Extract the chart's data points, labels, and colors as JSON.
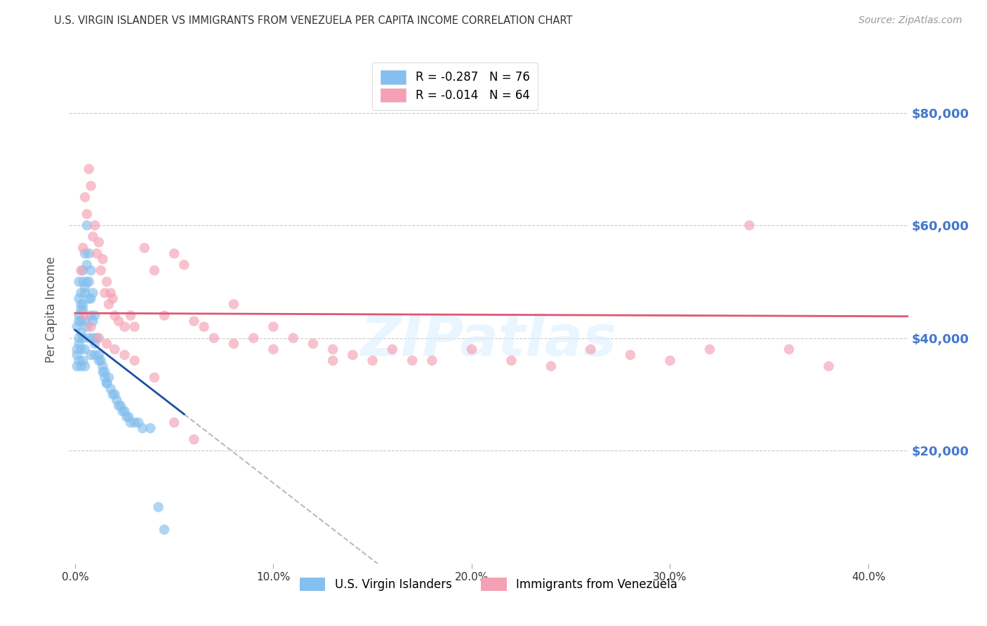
{
  "title": "U.S. VIRGIN ISLANDER VS IMMIGRANTS FROM VENEZUELA PER CAPITA INCOME CORRELATION CHART",
  "source": "Source: ZipAtlas.com",
  "ylabel": "Per Capita Income",
  "xlabel_ticks": [
    "0.0%",
    "10.0%",
    "20.0%",
    "30.0%",
    "40.0%"
  ],
  "xlabel_vals": [
    0.0,
    0.1,
    0.2,
    0.3,
    0.4
  ],
  "ytick_labels": [
    "$20,000",
    "$40,000",
    "$60,000",
    "$80,000"
  ],
  "ytick_vals": [
    20000,
    40000,
    60000,
    80000
  ],
  "ylim": [
    0,
    90000
  ],
  "xlim": [
    -0.003,
    0.42
  ],
  "blue_R": -0.287,
  "blue_N": 76,
  "pink_R": -0.014,
  "pink_N": 64,
  "legend_label_blue": "R = -0.287   N = 76",
  "legend_label_pink": "R = -0.014   N = 64",
  "legend_label_scatter_blue": "U.S. Virgin Islanders",
  "legend_label_scatter_pink": "Immigrants from Venezuela",
  "blue_color": "#85BFED",
  "blue_line_color": "#1A4FA0",
  "pink_color": "#F5A0B5",
  "pink_line_color": "#E05575",
  "watermark": "ZIPatlas",
  "scatter_size": 110,
  "blue_points_x": [
    0.001,
    0.001,
    0.001,
    0.002,
    0.002,
    0.002,
    0.002,
    0.002,
    0.003,
    0.003,
    0.003,
    0.003,
    0.003,
    0.004,
    0.004,
    0.004,
    0.004,
    0.005,
    0.005,
    0.005,
    0.005,
    0.005,
    0.006,
    0.006,
    0.006,
    0.007,
    0.007,
    0.007,
    0.008,
    0.008,
    0.008,
    0.009,
    0.009,
    0.01,
    0.01,
    0.011,
    0.012,
    0.013,
    0.014,
    0.015,
    0.015,
    0.016,
    0.017,
    0.018,
    0.019,
    0.02,
    0.021,
    0.022,
    0.023,
    0.024,
    0.025,
    0.026,
    0.027,
    0.028,
    0.03,
    0.032,
    0.034,
    0.038,
    0.042,
    0.045,
    0.001,
    0.002,
    0.002,
    0.003,
    0.003,
    0.004,
    0.004,
    0.005,
    0.006,
    0.007,
    0.008,
    0.009,
    0.01,
    0.012,
    0.014,
    0.016
  ],
  "blue_points_y": [
    38000,
    42000,
    35000,
    44000,
    47000,
    50000,
    40000,
    36000,
    45000,
    48000,
    43000,
    38000,
    35000,
    52000,
    46000,
    40000,
    36000,
    55000,
    48000,
    43000,
    38000,
    35000,
    60000,
    50000,
    42000,
    55000,
    47000,
    40000,
    52000,
    44000,
    37000,
    48000,
    40000,
    44000,
    37000,
    40000,
    37000,
    36000,
    35000,
    34000,
    33000,
    32000,
    33000,
    31000,
    30000,
    30000,
    29000,
    28000,
    28000,
    27000,
    27000,
    26000,
    26000,
    25000,
    25000,
    25000,
    24000,
    24000,
    10000,
    6000,
    37000,
    43000,
    39000,
    46000,
    41000,
    50000,
    45000,
    49000,
    53000,
    50000,
    47000,
    43000,
    39000,
    36000,
    34000,
    32000
  ],
  "pink_points_x": [
    0.003,
    0.004,
    0.005,
    0.006,
    0.007,
    0.008,
    0.009,
    0.01,
    0.011,
    0.012,
    0.013,
    0.014,
    0.015,
    0.016,
    0.017,
    0.018,
    0.019,
    0.02,
    0.022,
    0.025,
    0.028,
    0.03,
    0.035,
    0.04,
    0.045,
    0.05,
    0.055,
    0.06,
    0.065,
    0.07,
    0.08,
    0.09,
    0.1,
    0.11,
    0.12,
    0.13,
    0.14,
    0.15,
    0.16,
    0.17,
    0.18,
    0.2,
    0.22,
    0.24,
    0.26,
    0.28,
    0.3,
    0.32,
    0.34,
    0.36,
    0.38,
    0.005,
    0.008,
    0.012,
    0.016,
    0.02,
    0.025,
    0.03,
    0.04,
    0.05,
    0.06,
    0.08,
    0.1,
    0.13
  ],
  "pink_points_y": [
    52000,
    56000,
    65000,
    62000,
    70000,
    67000,
    58000,
    60000,
    55000,
    57000,
    52000,
    54000,
    48000,
    50000,
    46000,
    48000,
    47000,
    44000,
    43000,
    42000,
    44000,
    42000,
    56000,
    52000,
    44000,
    55000,
    53000,
    43000,
    42000,
    40000,
    46000,
    40000,
    42000,
    40000,
    39000,
    38000,
    37000,
    36000,
    38000,
    36000,
    36000,
    38000,
    36000,
    35000,
    38000,
    37000,
    36000,
    38000,
    60000,
    38000,
    35000,
    44000,
    42000,
    40000,
    39000,
    38000,
    37000,
    36000,
    33000,
    25000,
    22000,
    39000,
    38000,
    36000
  ],
  "background_color": "#FFFFFF",
  "grid_color": "#CCCCCC",
  "title_color": "#333333",
  "axis_label_color": "#555555",
  "tick_label_color_y": "#4477CC",
  "tick_label_color_x": "#333333"
}
